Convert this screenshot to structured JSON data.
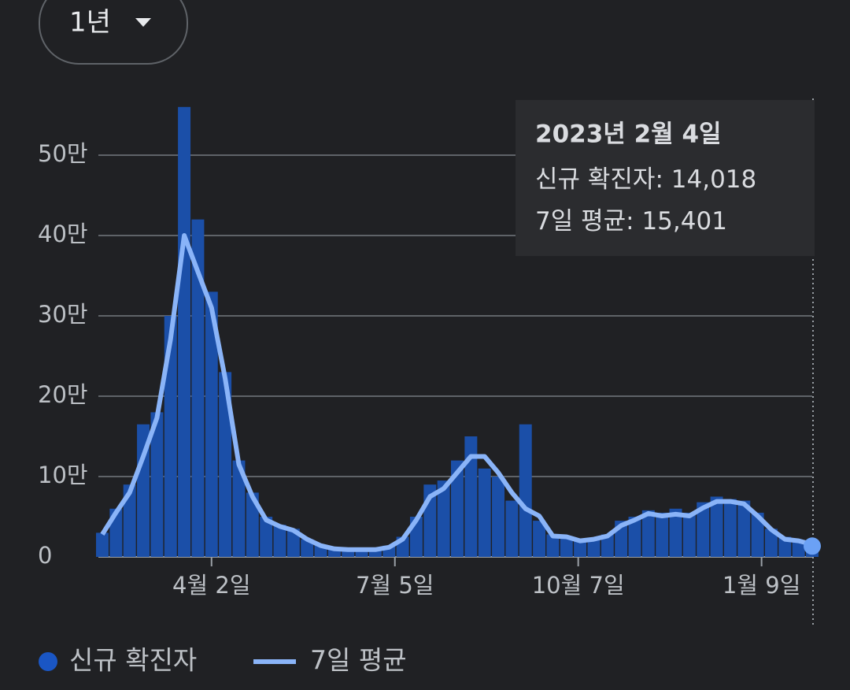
{
  "chart_data": {
    "type": "bar+line",
    "range_selector": "1년",
    "categories": [
      null,
      null,
      null,
      null,
      null,
      null,
      null,
      null,
      null,
      null,
      null,
      null,
      null,
      null,
      null,
      null,
      null,
      null,
      null,
      null,
      null,
      null,
      null,
      null,
      null,
      null,
      null,
      null,
      null,
      null,
      null,
      null,
      null,
      null,
      null,
      null,
      null,
      null,
      null,
      null,
      null,
      null,
      null,
      null,
      null,
      null,
      null,
      null,
      null,
      null,
      null,
      null,
      null
    ],
    "xticks": [
      {
        "value": 8,
        "label": "4월 2일"
      },
      {
        "value": 21.43,
        "label": "7월 5일"
      },
      {
        "value": 34.86,
        "label": "10월 7일"
      },
      {
        "value": 48.29,
        "label": "1월 9일"
      }
    ],
    "ylim": [
      0,
      600000
    ],
    "yticks": [
      0,
      {
        "value": 100000,
        "label": "10만"
      },
      {
        "value": 200000,
        "label": "20만"
      },
      {
        "value": 300000,
        "label": "30만"
      },
      {
        "value": 400000,
        "label": "40만"
      },
      {
        "value": 500000,
        "label": "50만"
      }
    ],
    "grid": true,
    "series": [
      {
        "name": "신규 확진자",
        "type": "bar",
        "color": "#1b4fa8",
        "legend_color": "#1a56c4",
        "values": [
          30000,
          60000,
          90000,
          165000,
          180000,
          300000,
          560000,
          420000,
          330000,
          230000,
          120000,
          80000,
          50000,
          40000,
          35000,
          22000,
          15000,
          10000,
          8000,
          9000,
          9000,
          14000,
          25000,
          50000,
          90000,
          95000,
          120000,
          150000,
          110000,
          100000,
          70000,
          165000,
          45000,
          28000,
          24000,
          20000,
          22000,
          28000,
          45000,
          50000,
          58000,
          55000,
          60000,
          55000,
          68000,
          75000,
          72000,
          70000,
          55000,
          35000,
          25000,
          20000,
          14018
        ]
      },
      {
        "name": "7일 평균",
        "type": "line",
        "color": "#8ab4f8",
        "values": [
          28000,
          55000,
          80000,
          125000,
          173000,
          271000,
          400000,
          355000,
          310000,
          222000,
          115000,
          75000,
          46000,
          38000,
          33000,
          22000,
          14000,
          10000,
          9000,
          9000,
          9000,
          12000,
          22000,
          46000,
          75000,
          85000,
          105000,
          125000,
          125000,
          105000,
          80000,
          60000,
          51000,
          26000,
          25000,
          20000,
          22000,
          26000,
          39000,
          46000,
          54000,
          51000,
          53000,
          51000,
          61000,
          69000,
          69000,
          66000,
          51000,
          34000,
          22000,
          20000,
          15401
        ]
      }
    ],
    "tooltip": {
      "title": "2023년 2월 4일",
      "items": [
        {
          "name": "신규 확진자",
          "value": "14,018"
        },
        {
          "name": "7일 평균",
          "value": "15,401"
        }
      ]
    }
  }
}
